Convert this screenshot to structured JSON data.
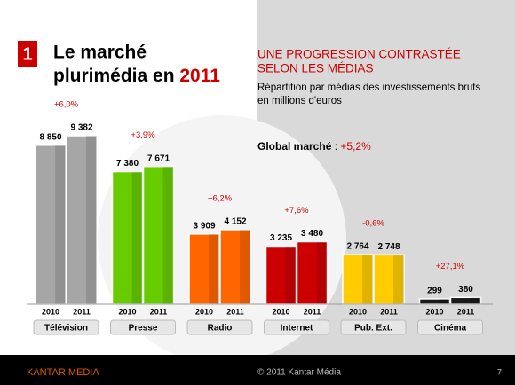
{
  "slide": {
    "number": "1",
    "title_lines": [
      "Le marché",
      "plurimédia en"
    ],
    "title_year": "2011"
  },
  "footer": {
    "brand": "KANTAR MEDIA",
    "copyright": "© 2011 Kantar Média",
    "page": "7"
  },
  "chart_data": {
    "type": "bar",
    "heading": [
      "UNE PROGRESSION CONTRASTÉE",
      "SELON LES MÉDIAS"
    ],
    "subtitle": [
      "Répartition par médias des investissements bruts",
      "en millions d'euros"
    ],
    "global": {
      "label": "Global marché",
      "separator": ":",
      "value": "+5,2%"
    },
    "categories": [
      "Télévision",
      "Presse",
      "Radio",
      "Internet",
      "Pub. Ext.",
      "Cinéma"
    ],
    "colors": [
      "#a6a6a6",
      "#66cc00",
      "#ff6600",
      "#cc0000",
      "#ffcc00",
      "#1a1a1a"
    ],
    "growth_labels": [
      "+6,0%",
      "+3,9%",
      "+6,2%",
      "+7,6%",
      "-0,6%",
      "+27,1%"
    ],
    "series": [
      {
        "name": "2010",
        "values": [
          8850,
          7380,
          3909,
          3235,
          2764,
          299
        ],
        "value_labels": [
          "8 850",
          "7 380",
          "3 909",
          "3 235",
          "2 764",
          "299"
        ]
      },
      {
        "name": "2011",
        "values": [
          9382,
          7671,
          4152,
          3480,
          2748,
          380
        ],
        "value_labels": [
          "9 382",
          "7 671",
          "4 152",
          "3 480",
          "2 748",
          "380"
        ]
      }
    ]
  }
}
